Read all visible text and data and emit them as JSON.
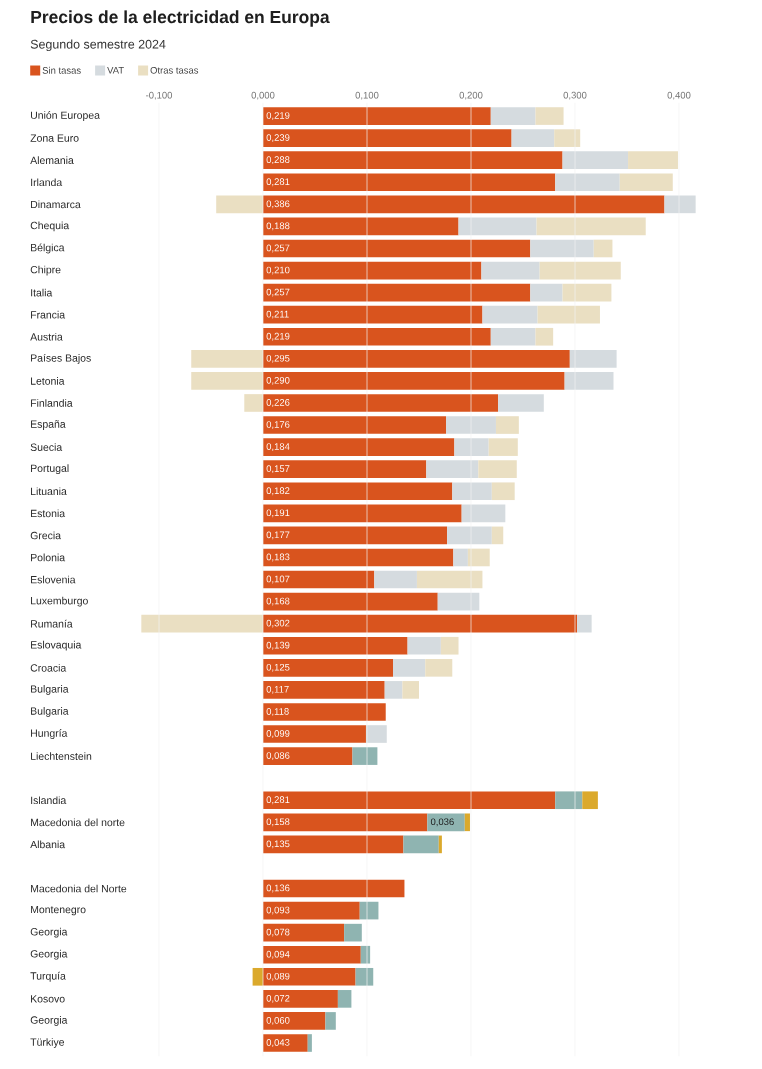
{
  "chart_data": {
    "type": "bar",
    "orientation": "horizontal",
    "stacked": true,
    "title": "Precios de la electricidad en Europa",
    "subtitle": "Segundo semestre 2024",
    "categories": [
      "Unión Europea",
      "Zona Euro",
      "Alemania",
      "Irlanda",
      "Dinamarca",
      "Chequia",
      "Bélgica",
      "Chipre",
      "Italia",
      "Francia",
      "Austria",
      "Países Bajos",
      "Letonia",
      "Finlandia",
      "España",
      "Suecia",
      "Portugal",
      "Lituania",
      "Estonia",
      "Grecia",
      "Polonia",
      "Eslovenia",
      "Luxemburgo",
      "Rumanía",
      "Eslovaquia",
      "Croacia",
      "Bulgaria",
      "Bulgaria",
      "Hungría",
      "Liechtenstein",
      null,
      "Islandia",
      "Macedonia del norte",
      "Albania",
      null,
      "Macedonia del Norte",
      "Montenegro",
      "Georgia",
      "Georgia",
      "Turquía",
      "Kosovo",
      "Georgia",
      "Türkiye"
    ],
    "series": [
      {
        "name": "Sin tasas",
        "color": "#d9541e",
        "values": [
          0.219,
          0.239,
          0.288,
          0.281,
          0.386,
          0.188,
          0.257,
          0.21,
          0.257,
          0.211,
          0.219,
          0.295,
          0.29,
          0.226,
          0.176,
          0.184,
          0.157,
          0.182,
          0.191,
          0.177,
          0.183,
          0.107,
          0.168,
          0.302,
          0.139,
          0.125,
          0.117,
          0.118,
          0.099,
          0.086,
          null,
          0.281,
          0.158,
          0.135,
          null,
          0.136,
          0.093,
          0.078,
          0.094,
          0.089,
          0.072,
          0.06,
          0.043
        ],
        "value_labels": [
          "0,219",
          "0,239",
          "0,288",
          "0,281",
          "0,386",
          "0,188",
          "0,257",
          "0,210",
          "0,257",
          "0,211",
          "0,219",
          "0,295",
          "0,290",
          "0,226",
          "0,176",
          "0,184",
          "0,157",
          "0,182",
          "0,191",
          "0,177",
          "0,183",
          "0,107",
          "0,168",
          "0,302",
          "0,139",
          "0,125",
          "0,117",
          "0,118",
          "0,099",
          "0,086",
          null,
          "0,281",
          "0,158",
          "0,135",
          null,
          "0,136",
          "0,093",
          "0,078",
          "0,094",
          "0,089",
          "0,072",
          "0,060",
          "0,043"
        ]
      },
      {
        "name": "VAT",
        "color": "#d5dbdf",
        "values": [
          0.043,
          0.041,
          0.063,
          0.062,
          0.03,
          0.075,
          0.061,
          0.056,
          0.031,
          0.053,
          0.043,
          0.045,
          0.047,
          0.044,
          0.048,
          0.033,
          0.05,
          0.038,
          0.042,
          0.043,
          0.014,
          0.041,
          0.04,
          0.014,
          0.032,
          0.031,
          0.017,
          null,
          0.02,
          0.024,
          null,
          0.026,
          0.036,
          0.034,
          null,
          null,
          0.018,
          0.017,
          0.009,
          0.017,
          0.013,
          0.01,
          0.004
        ],
        "colors": [
          "#d5dbdf",
          "#d5dbdf",
          "#d5dbdf",
          "#d5dbdf",
          "#d5dbdf",
          "#d5dbdf",
          "#d5dbdf",
          "#d5dbdf",
          "#d5dbdf",
          "#d5dbdf",
          "#d5dbdf",
          "#d5dbdf",
          "#d5dbdf",
          "#d5dbdf",
          "#d5dbdf",
          "#d5dbdf",
          "#d5dbdf",
          "#d5dbdf",
          "#d5dbdf",
          "#d5dbdf",
          "#d5dbdf",
          "#d5dbdf",
          "#d5dbdf",
          "#d5dbdf",
          "#d5dbdf",
          "#d5dbdf",
          "#d5dbdf",
          null,
          "#d5dbdf",
          "#8fb4b1",
          null,
          "#8fb4b1",
          "#8fb4b1",
          "#8fb4b1",
          null,
          null,
          "#8fb4b1",
          "#8fb4b1",
          "#8fb4b1",
          "#8fb4b1",
          "#8fb4b1",
          "#8fb4b1",
          "#8fb4b1"
        ],
        "value_labels": [
          null,
          null,
          null,
          null,
          null,
          null,
          null,
          null,
          null,
          null,
          null,
          null,
          null,
          null,
          null,
          null,
          null,
          null,
          null,
          null,
          null,
          null,
          null,
          null,
          null,
          null,
          null,
          null,
          null,
          null,
          null,
          null,
          "0,036",
          null,
          null,
          null,
          null,
          null,
          null,
          null,
          null,
          null,
          null
        ]
      },
      {
        "name": "Otras tasas",
        "color": "#eadfc2",
        "values": [
          0.027,
          0.025,
          0.048,
          0.051,
          -0.045,
          0.105,
          0.018,
          0.078,
          0.047,
          0.06,
          0.017,
          -0.069,
          -0.069,
          -0.018,
          0.022,
          0.028,
          0.037,
          0.022,
          null,
          0.011,
          0.021,
          0.063,
          null,
          -0.117,
          0.017,
          0.026,
          0.016,
          null,
          null,
          null,
          null,
          0.015,
          0.005,
          0.003,
          null,
          null,
          null,
          null,
          null,
          -0.01,
          null,
          null,
          null
        ],
        "colors": [
          "#eadfc2",
          "#eadfc2",
          "#eadfc2",
          "#eadfc2",
          "#eadfc2",
          "#eadfc2",
          "#eadfc2",
          "#eadfc2",
          "#eadfc2",
          "#eadfc2",
          "#eadfc2",
          "#eadfc2",
          "#eadfc2",
          "#eadfc2",
          "#eadfc2",
          "#eadfc2",
          "#eadfc2",
          "#eadfc2",
          null,
          "#eadfc2",
          "#eadfc2",
          "#eadfc2",
          null,
          "#eadfc2",
          "#eadfc2",
          "#eadfc2",
          "#eadfc2",
          null,
          null,
          null,
          null,
          "#dba92c",
          "#dba92c",
          "#dba92c",
          null,
          null,
          null,
          null,
          null,
          "#dba92c",
          null,
          null,
          null
        ]
      }
    ],
    "xlim": [
      -0.117,
      0.416
    ],
    "xticks": [
      {
        "value": -0.1,
        "label": "-0,100"
      },
      {
        "value": 0,
        "label": "0,000"
      },
      {
        "value": 0.1,
        "label": "0,100"
      },
      {
        "value": 0.2,
        "label": "0,200"
      },
      {
        "value": 0.3,
        "label": "0,300"
      },
      {
        "value": 0.4,
        "label": "0,400"
      }
    ],
    "grid": "x",
    "legend": "top left"
  }
}
